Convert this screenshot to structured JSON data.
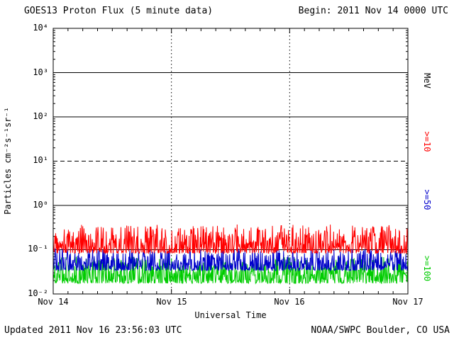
{
  "header": {
    "title": "GOES13 Proton Flux (5 minute data)",
    "begin": "Begin: 2011 Nov 14 0000 UTC"
  },
  "footer": {
    "updated": "Updated 2011 Nov 16 23:56:03 UTC",
    "credit": "NOAA/SWPC Boulder, CO USA"
  },
  "axes": {
    "y_label": "Particles cm⁻²s⁻¹sr⁻¹",
    "x_label": "Universal Time",
    "y_tick_labels": [
      "10⁴",
      "10³",
      "10²",
      "10¹",
      "10⁰",
      "10⁻¹",
      "10⁻²"
    ],
    "x_tick_labels": [
      "Nov 14",
      "Nov 15",
      "Nov 16",
      "Nov 17"
    ]
  },
  "right_labels": [
    {
      "text": "MeV",
      "color": "#000000"
    },
    {
      "text": ">=10",
      "color": "#ff0000"
    },
    {
      "text": ">=50",
      "color": "#0000cc"
    },
    {
      "text": ">=100",
      "color": "#00cc00"
    }
  ],
  "chart_data": {
    "type": "line",
    "title": "GOES13 Proton Flux (5 minute data)",
    "xlabel": "Universal Time",
    "ylabel": "Particles cm-2 s-1 sr-1",
    "x_start": "2011 Nov 14 0000 UTC",
    "x_range_days": 3,
    "points_per_day": 288,
    "x_tick_labels": [
      "Nov 14",
      "Nov 15",
      "Nov 16",
      "Nov 17"
    ],
    "y_scale": "log",
    "ylim": [
      0.01,
      10000
    ],
    "y_tick_values": [
      0.01,
      0.1,
      1,
      10,
      100,
      1000,
      10000
    ],
    "grid": {
      "solid_h_lines": [
        1000,
        100,
        1,
        0.1
      ],
      "dashed_h_lines": [
        10
      ],
      "dotted_v_days": [
        1,
        2
      ]
    },
    "series": [
      {
        "name": ">=10 MeV",
        "color": "#ff0000",
        "typical_flux": 0.14,
        "flux_min": 0.083,
        "flux_max": 0.37,
        "log10_base": -1.08,
        "log10_amp": 0.65
      },
      {
        "name": ">=50 MeV",
        "color": "#0000cc",
        "typical_flux": 0.05,
        "flux_min": 0.034,
        "flux_max": 0.11,
        "log10_base": -1.47,
        "log10_amp": 0.5
      },
      {
        "name": ">=100 MeV",
        "color": "#00cc00",
        "typical_flux": 0.027,
        "flux_min": 0.017,
        "flux_max": 0.066,
        "log10_base": -1.76,
        "log10_amp": 0.6
      }
    ]
  }
}
